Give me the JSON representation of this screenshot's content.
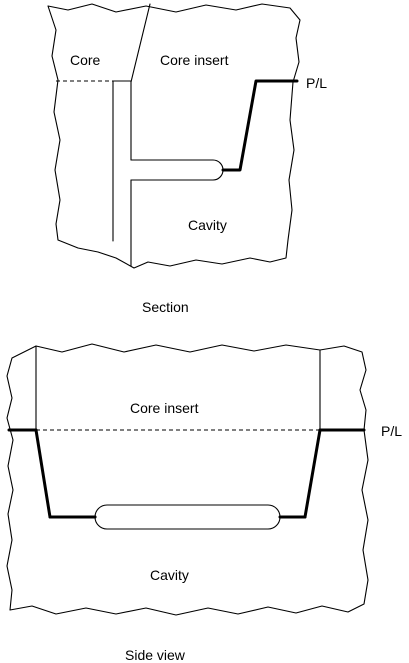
{
  "section_view": {
    "labels": {
      "core": "Core",
      "core_insert": "Core insert",
      "parting_line": "P/L",
      "cavity": "Cavity"
    },
    "caption": "Section"
  },
  "side_view": {
    "labels": {
      "core_insert": "Core insert",
      "parting_line": "P/L",
      "cavity": "Cavity"
    },
    "caption": "Side view"
  },
  "colors": {
    "line": "#000000",
    "background": "#ffffff"
  }
}
